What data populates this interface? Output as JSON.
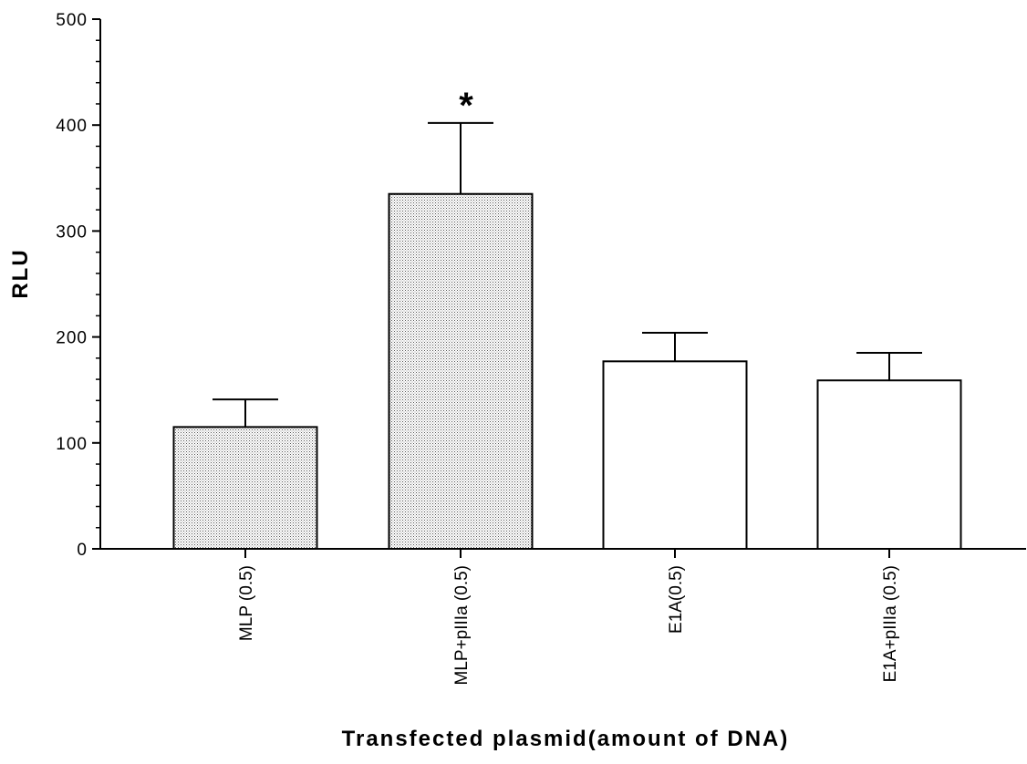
{
  "chart_data": {
    "type": "bar",
    "title": "",
    "xlabel": "Transfected plasmid(amount of DNA)",
    "ylabel": "RLU",
    "ylim": [
      0,
      500
    ],
    "yticks": [
      0,
      100,
      200,
      300,
      400,
      500
    ],
    "categories": [
      "MLP (0.5)",
      "MLP+pIIIa (0.5)",
      "E1A(0.5)",
      "E1A+pIIIa (0.5)"
    ],
    "values": [
      115,
      335,
      177,
      159
    ],
    "error_plus": [
      26,
      67,
      27,
      26
    ],
    "fills": [
      "dotted",
      "dotted",
      "white",
      "white"
    ],
    "annotations": [
      {
        "category": "MLP+pIIIa (0.5)",
        "text": "*"
      }
    ],
    "grid": false,
    "legend": "none"
  }
}
